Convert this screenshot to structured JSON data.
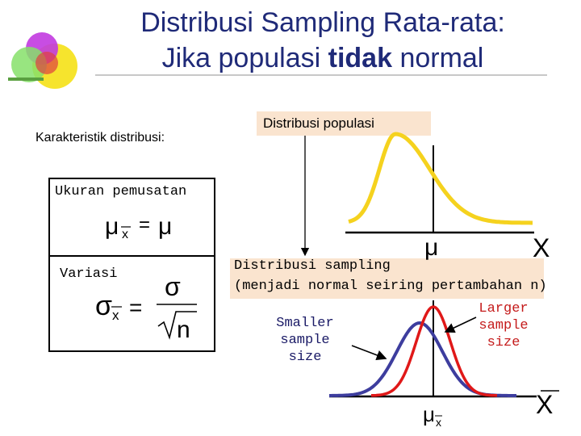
{
  "slide": {
    "title_line1": "Distribusi Sampling Rata-rata:",
    "title_line2_prefix": "Jika populasi",
    "title_line2_bold": "tidak",
    "title_line2_suffix": "normal"
  },
  "left_panel": {
    "heading": "Karakteristik distribusi:",
    "center": {
      "label": "Ukuran pemusatan",
      "formula_lhs": "μ",
      "formula_sub": "x",
      "formula_eq": "=",
      "formula_rhs": "μ"
    },
    "spread": {
      "label": "Variasi",
      "formula_lhs": "σ",
      "formula_sub": "x",
      "formula_eq": "=",
      "numerator": "σ",
      "denominator": "n"
    }
  },
  "population": {
    "label": "Distribusi populasi",
    "mu_label": "μ",
    "x_label": "X"
  },
  "sampling": {
    "title": "Distribusi sampling",
    "subtitle": "(menjadi normal seiring pertambahan n)",
    "smaller_line1": "Smaller",
    "smaller_line2": "sample size",
    "larger_line1": "Larger",
    "larger_line2": "sample",
    "larger_line3": "size",
    "mu_label": "μ",
    "mu_sub": "x",
    "x_label": "X"
  },
  "colors": {
    "title": "#1f2a78",
    "population_curve": "#f5d21e",
    "small_n_curve": "#3d3d9e",
    "large_n_curve": "#e01818",
    "label_bg": "#fae4cf"
  }
}
